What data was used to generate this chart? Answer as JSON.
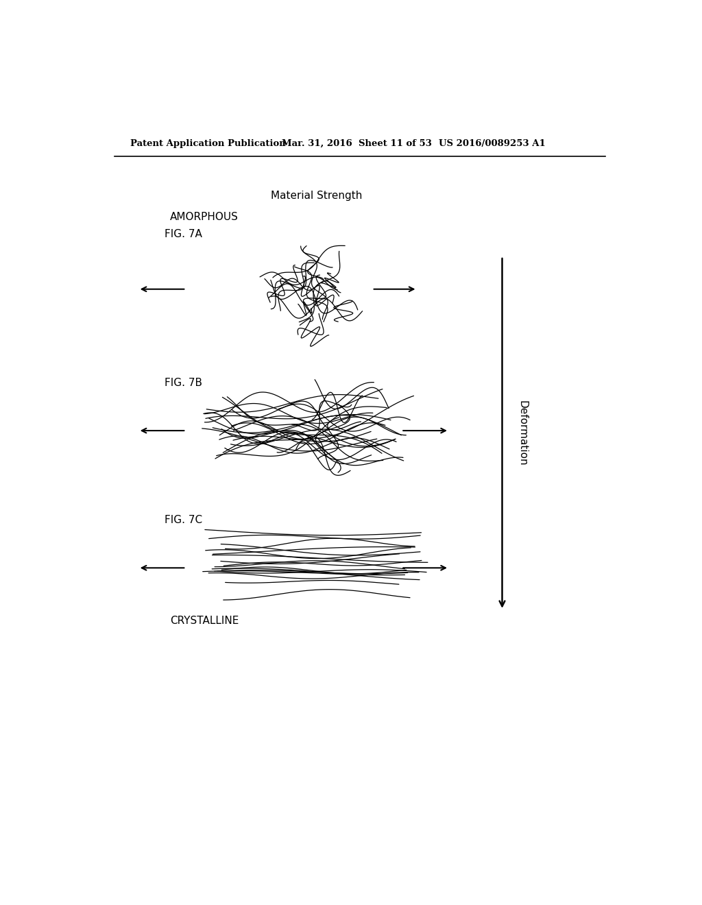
{
  "title_header": "Patent Application Publication",
  "date_header": "Mar. 31, 2016  Sheet 11 of 53",
  "patent_header": "US 2016/0089253 A1",
  "material_strength_label": "Material Strength",
  "amorphous_label": "AMORPHOUS",
  "crystalline_label": "CRYSTALLINE",
  "fig7a_label": "FIG. 7A",
  "fig7b_label": "FIG. 7B",
  "fig7c_label": "FIG. 7C",
  "deformation_label": "Deformation",
  "bg_color": "#ffffff",
  "line_color": "#000000"
}
